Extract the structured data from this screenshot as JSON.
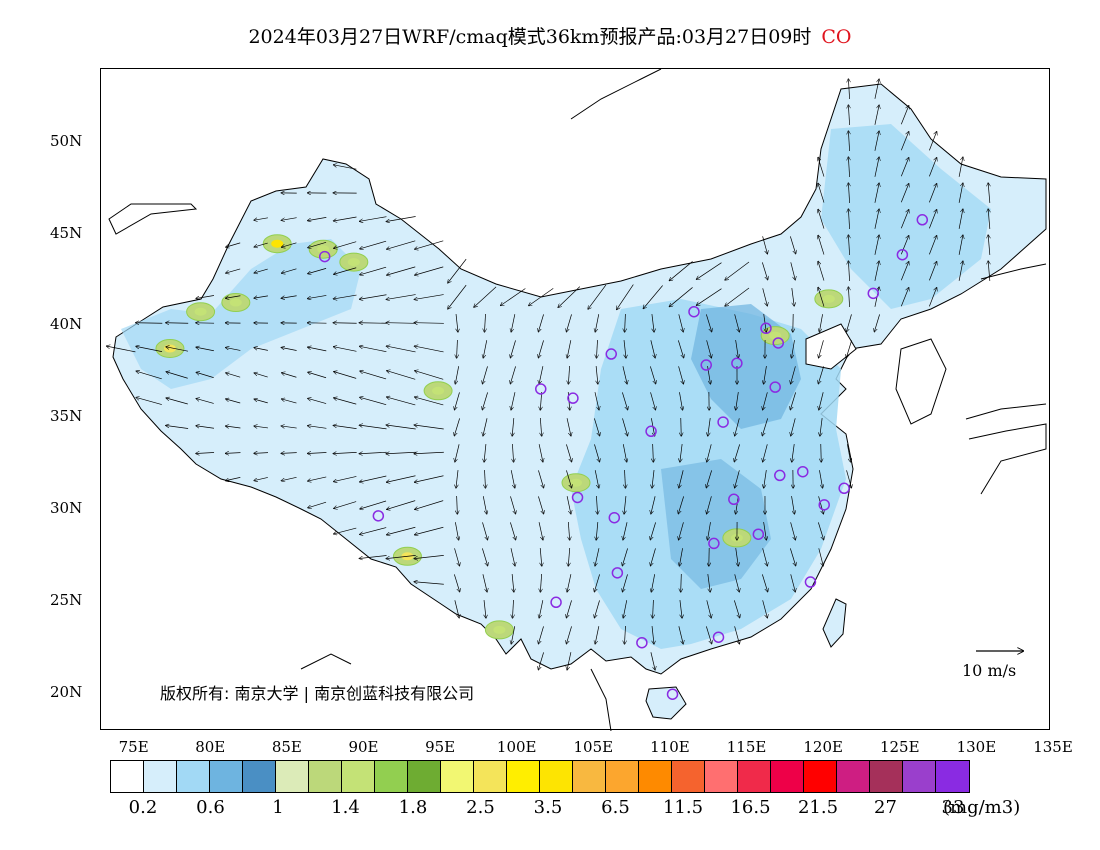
{
  "title": {
    "text": "2024年03月27日WRF/cmaq模式36km预报产品:03月27日09时",
    "species": "CO",
    "species_color": "#e0141e"
  },
  "axes": {
    "lon_labels": [
      "75E",
      "80E",
      "85E",
      "90E",
      "95E",
      "100E",
      "105E",
      "110E",
      "115E",
      "120E",
      "125E",
      "130E",
      "135E"
    ],
    "lat_labels": [
      "50N",
      "45N",
      "40N",
      "35N",
      "30N",
      "25N",
      "20N"
    ],
    "lon_range": [
      73,
      135
    ],
    "lat_range": [
      18,
      54
    ]
  },
  "copyright": {
    "prefix": "版权所有:",
    "org1": "南京大学",
    "org2": "南京创蓝科技有限公司"
  },
  "wind_scale": {
    "label": "10 m/s"
  },
  "legend": {
    "colors": [
      "#ffffff",
      "#d6eefb",
      "#a2d9f5",
      "#6eb4e0",
      "#4a8fc4",
      "#dcebb8",
      "#bcd87a",
      "#c4e276",
      "#92cf50",
      "#6eac32",
      "#f2f772",
      "#f4e45a",
      "#ffee00",
      "#fde402",
      "#f8b840",
      "#fca62e",
      "#fe8a00",
      "#f5632e",
      "#ff6f70",
      "#f02a4a",
      "#ee0048",
      "#ff0000",
      "#ce1e82",
      "#a5305a",
      "#9a3fcc",
      "#8a2be2"
    ],
    "labels": [
      "0.2",
      "0.6",
      "1",
      "1.4",
      "1.8",
      "2.5",
      "3.5",
      "6.5",
      "11.5",
      "16.5",
      "21.5",
      "27",
      "33"
    ],
    "unit": "(mg/m3)"
  },
  "chart_data": {
    "type": "heatmap",
    "variable": "CO",
    "units": "mg/m3",
    "bounds": [
      0.2,
      0.6,
      1,
      1.4,
      1.8,
      2.5,
      3.5,
      6.5,
      11.5,
      16.5,
      21.5,
      27,
      33
    ],
    "hotspots": [
      {
        "lon": 77.5,
        "lat": 38.8,
        "level": 2.5
      },
      {
        "lon": 84.5,
        "lat": 44.5,
        "level": 3.5
      },
      {
        "lon": 93.0,
        "lat": 27.5,
        "level": 2.5
      },
      {
        "lon": 95.0,
        "lat": 36.5,
        "level": 1.4
      },
      {
        "lon": 81.8,
        "lat": 41.3,
        "level": 1.4
      },
      {
        "lon": 79.5,
        "lat": 40.8,
        "level": 1.4
      },
      {
        "lon": 89.5,
        "lat": 43.5,
        "level": 1.4
      },
      {
        "lon": 87.5,
        "lat": 44.2,
        "level": 1.4
      },
      {
        "lon": 114.5,
        "lat": 28.5,
        "level": 1.4
      },
      {
        "lon": 104.0,
        "lat": 31.5,
        "level": 1.4
      },
      {
        "lon": 99.0,
        "lat": 23.5,
        "level": 1.4
      },
      {
        "lon": 120.5,
        "lat": 41.5,
        "level": 1.4
      },
      {
        "lon": 117.0,
        "lat": 39.5,
        "level": 1.4
      }
    ],
    "stations": [
      {
        "lon": 87.6,
        "lat": 43.8
      },
      {
        "lon": 91.1,
        "lat": 29.7
      },
      {
        "lon": 101.7,
        "lat": 36.6
      },
      {
        "lon": 103.8,
        "lat": 36.1
      },
      {
        "lon": 106.3,
        "lat": 38.5
      },
      {
        "lon": 111.7,
        "lat": 40.8
      },
      {
        "lon": 112.5,
        "lat": 37.9
      },
      {
        "lon": 114.5,
        "lat": 38.0
      },
      {
        "lon": 116.4,
        "lat": 39.9
      },
      {
        "lon": 117.2,
        "lat": 39.1
      },
      {
        "lon": 117.0,
        "lat": 36.7
      },
      {
        "lon": 113.6,
        "lat": 34.8
      },
      {
        "lon": 108.9,
        "lat": 34.3
      },
      {
        "lon": 104.1,
        "lat": 30.7
      },
      {
        "lon": 106.5,
        "lat": 29.6
      },
      {
        "lon": 114.3,
        "lat": 30.6
      },
      {
        "lon": 117.3,
        "lat": 31.9
      },
      {
        "lon": 118.8,
        "lat": 32.1
      },
      {
        "lon": 121.5,
        "lat": 31.2
      },
      {
        "lon": 120.2,
        "lat": 30.3
      },
      {
        "lon": 113.0,
        "lat": 28.2
      },
      {
        "lon": 115.9,
        "lat": 28.7
      },
      {
        "lon": 119.3,
        "lat": 26.1
      },
      {
        "lon": 106.7,
        "lat": 26.6
      },
      {
        "lon": 102.7,
        "lat": 25.0
      },
      {
        "lon": 108.3,
        "lat": 22.8
      },
      {
        "lon": 113.3,
        "lat": 23.1
      },
      {
        "lon": 110.3,
        "lat": 20.0
      },
      {
        "lon": 123.4,
        "lat": 41.8
      },
      {
        "lon": 125.3,
        "lat": 43.9
      },
      {
        "lon": 126.6,
        "lat": 45.8
      }
    ]
  }
}
